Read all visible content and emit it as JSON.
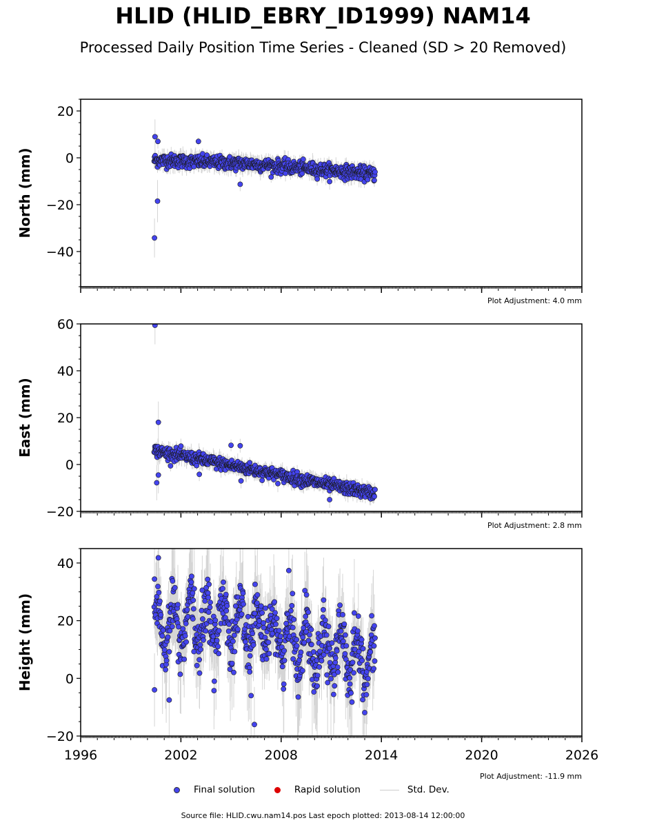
{
  "header": {
    "title": "HLID (HLID_EBRY_ID1999) NAM14",
    "subtitle": "Processed Daily Position Time Series - Cleaned (SD > 20 Removed)"
  },
  "legend": {
    "final_label": "Final solution",
    "rapid_label": "Rapid solution",
    "std_label": "Std. Dev.",
    "final_color": "#4444ee",
    "rapid_color": "#dd0000",
    "std_color": "#cccccc"
  },
  "footer": {
    "source": "Source file: HLID.cwu.nam14.pos  Last epoch plotted: 2013-08-14 12:00:00"
  },
  "chart_data": [
    {
      "type": "scatter",
      "ylabel": "North (mm)",
      "xlim": [
        1996,
        2026
      ],
      "ylim": [
        -55,
        25
      ],
      "yticks": [
        20,
        0,
        -20,
        -40
      ],
      "ytick_labels": [
        "20",
        "0",
        "−20",
        "−40"
      ],
      "adjustment": "Plot Adjustment: 4.0 mm",
      "x_start": 2000.4,
      "x_end": 2013.62,
      "trend": [
        [
          2000.4,
          -1.0
        ],
        [
          2006.0,
          -2.5
        ],
        [
          2013.6,
          -7.0
        ]
      ],
      "scatter_sd": 1.4,
      "outliers": [
        [
          2000.42,
          -34.2
        ],
        [
          2000.6,
          -18.5
        ],
        [
          2003.05,
          7.0
        ],
        [
          2005.55,
          -11.3
        ],
        [
          2000.45,
          9.0
        ],
        [
          2000.62,
          7.0
        ]
      ]
    },
    {
      "type": "scatter",
      "ylabel": "East (mm)",
      "xlim": [
        1996,
        2026
      ],
      "ylim": [
        -20,
        60
      ],
      "yticks": [
        60,
        40,
        20,
        0,
        -20
      ],
      "ytick_labels": [
        "60",
        "40",
        "20",
        "0",
        "−20"
      ],
      "adjustment": "Plot Adjustment: 2.8 mm",
      "x_start": 2000.4,
      "x_end": 2013.62,
      "trend": [
        [
          2000.4,
          6.0
        ],
        [
          2013.6,
          -12.5
        ]
      ],
      "scatter_sd": 1.3,
      "outliers": [
        [
          2000.45,
          59.4
        ],
        [
          2000.65,
          18.0
        ],
        [
          2000.55,
          -7.8
        ],
        [
          2000.65,
          -4.5
        ],
        [
          2005.0,
          8.2
        ],
        [
          2005.55,
          8.0
        ],
        [
          2005.6,
          -7.0
        ],
        [
          2003.1,
          -4.2
        ],
        [
          2010.9,
          -15.0
        ]
      ]
    },
    {
      "type": "scatter",
      "ylabel": "Height (mm)",
      "xlim": [
        1996,
        2026
      ],
      "ylim": [
        -20,
        45
      ],
      "yticks": [
        40,
        20,
        0,
        -20
      ],
      "ytick_labels": [
        "40",
        "20",
        "0",
        "−20"
      ],
      "adjustment": "Plot Adjustment: -11.9 mm",
      "x_start": 2000.4,
      "x_end": 2013.62,
      "trend": [
        [
          2000.4,
          17.0
        ],
        [
          2004.5,
          20.0
        ],
        [
          2013.6,
          6.0
        ]
      ],
      "seasonal_amp": 8.0,
      "scatter_sd": 5.0,
      "outliers": [
        [
          2000.65,
          41.8
        ],
        [
          2006.4,
          -16.0
        ],
        [
          2004.0,
          -1.0
        ],
        [
          2000.42,
          -4.0
        ],
        [
          2001.3,
          -7.5
        ],
        [
          2006.2,
          -6.0
        ]
      ]
    }
  ],
  "x_axis": {
    "ticks": [
      1996,
      2002,
      2008,
      2014,
      2020,
      2026
    ],
    "tick_labels": [
      "1996",
      "2002",
      "2008",
      "2014",
      "2020",
      "2026"
    ]
  }
}
